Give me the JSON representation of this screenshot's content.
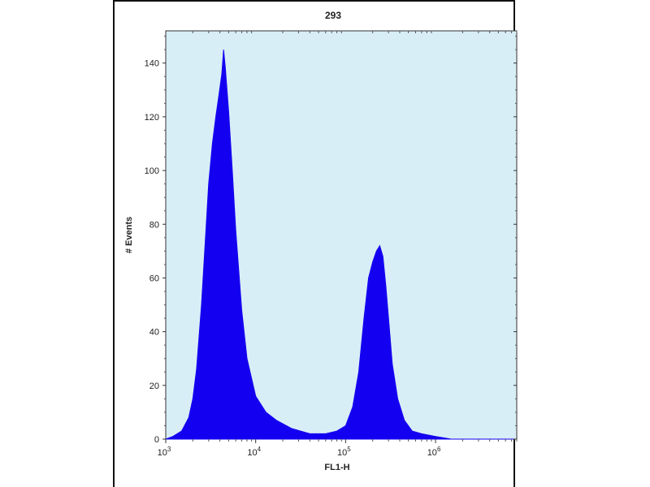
{
  "chart_data": {
    "type": "area",
    "title": "293",
    "xlabel": "FL1-H",
    "ylabel": "# Events",
    "x_scale": "log",
    "xlim": [
      1000,
      8000000
    ],
    "ylim": [
      0,
      152
    ],
    "x_ticks": [
      {
        "value": 1000,
        "base": "10",
        "exp": "3"
      },
      {
        "value": 10000,
        "base": "10",
        "exp": "4"
      },
      {
        "value": 100000,
        "base": "10",
        "exp": "5"
      },
      {
        "value": 1000000,
        "base": "10",
        "exp": "6"
      }
    ],
    "y_ticks": [
      0,
      20,
      40,
      60,
      80,
      100,
      120,
      140
    ],
    "grid": false,
    "plot_background": "#d8eef6",
    "fill_color": "#1400f0",
    "series": [
      {
        "x": [
          1000,
          1200,
          1500,
          1800,
          2000,
          2200,
          2500,
          2800,
          3000,
          3300,
          3600,
          3900,
          4200,
          4400,
          4600,
          5000,
          5500,
          6000,
          7000,
          8000,
          10000,
          13000,
          17000,
          25000,
          40000,
          60000,
          80000,
          100000,
          120000,
          140000,
          160000,
          180000,
          200000,
          220000,
          240000,
          260000,
          280000,
          300000,
          330000,
          380000,
          450000,
          550000,
          700000,
          1000000,
          1500000,
          2000000,
          3000000,
          5000000,
          8000000
        ],
        "y": [
          0,
          1,
          3,
          8,
          15,
          26,
          50,
          78,
          95,
          110,
          120,
          128,
          136,
          145,
          138,
          122,
          100,
          78,
          48,
          30,
          16,
          10,
          7,
          4,
          2,
          2,
          3,
          5,
          12,
          25,
          45,
          60,
          66,
          70,
          72,
          68,
          57,
          45,
          28,
          15,
          7,
          3,
          2,
          1,
          0,
          0,
          0,
          0,
          0
        ]
      }
    ]
  }
}
